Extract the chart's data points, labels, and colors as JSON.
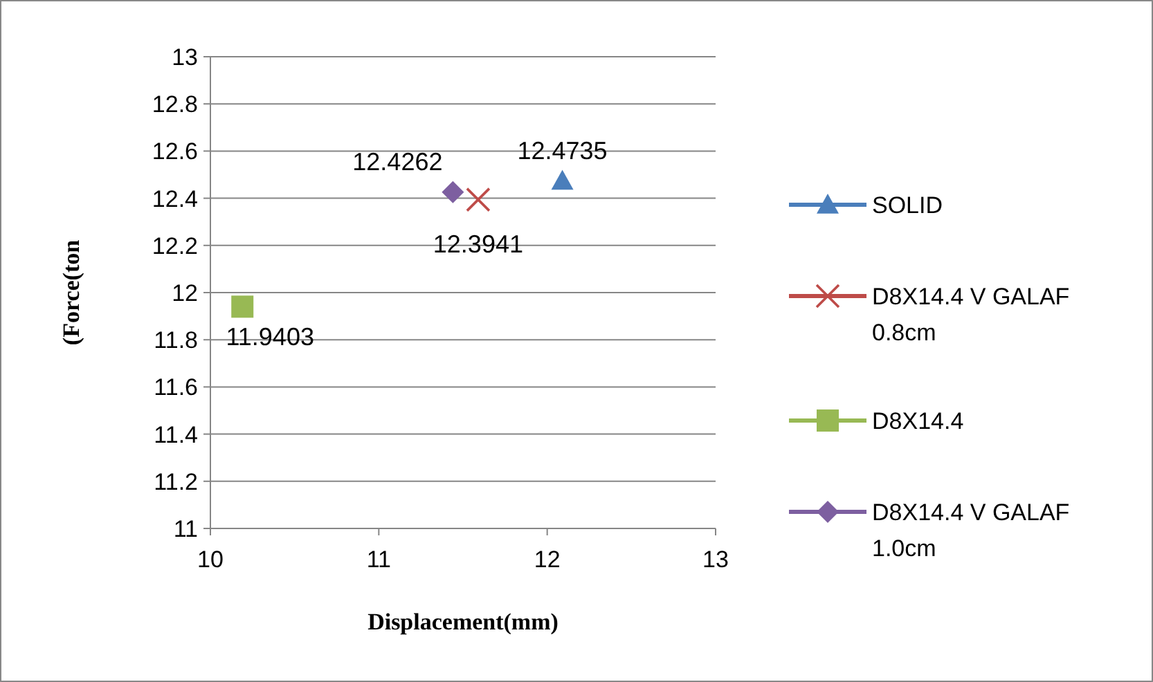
{
  "chart_data": {
    "type": "scatter",
    "xlabel": "Displacement(mm)",
    "ylabel": "(Force(ton",
    "xlim": [
      10,
      13
    ],
    "xticks": [
      10,
      11,
      12,
      13
    ],
    "ylim": [
      11,
      13
    ],
    "yticks": [
      11,
      11.2,
      11.4,
      11.6,
      11.8,
      12,
      12.2,
      12.4,
      12.6,
      12.8,
      13
    ],
    "grid": "y",
    "legend": "right",
    "data_labels": true,
    "series": [
      {
        "name": "SOLID",
        "color": "#4a7ebb",
        "marker": "triangle",
        "x": [
          12.09
        ],
        "values": [
          12.4735
        ]
      },
      {
        "name": "D8X14.4 V GALAF 0.8cm",
        "color": "#be4b48",
        "marker": "cross",
        "x": [
          11.59
        ],
        "values": [
          12.3941
        ]
      },
      {
        "name": "D8X14.4",
        "color": "#98b954",
        "marker": "square",
        "x": [
          10.19
        ],
        "values": [
          11.9403
        ]
      },
      {
        "name": "D8X14.4 V GALAF 1.0cm",
        "color": "#7d5fa0",
        "marker": "diamond",
        "x": [
          11.44
        ],
        "values": [
          12.4262
        ]
      }
    ]
  }
}
